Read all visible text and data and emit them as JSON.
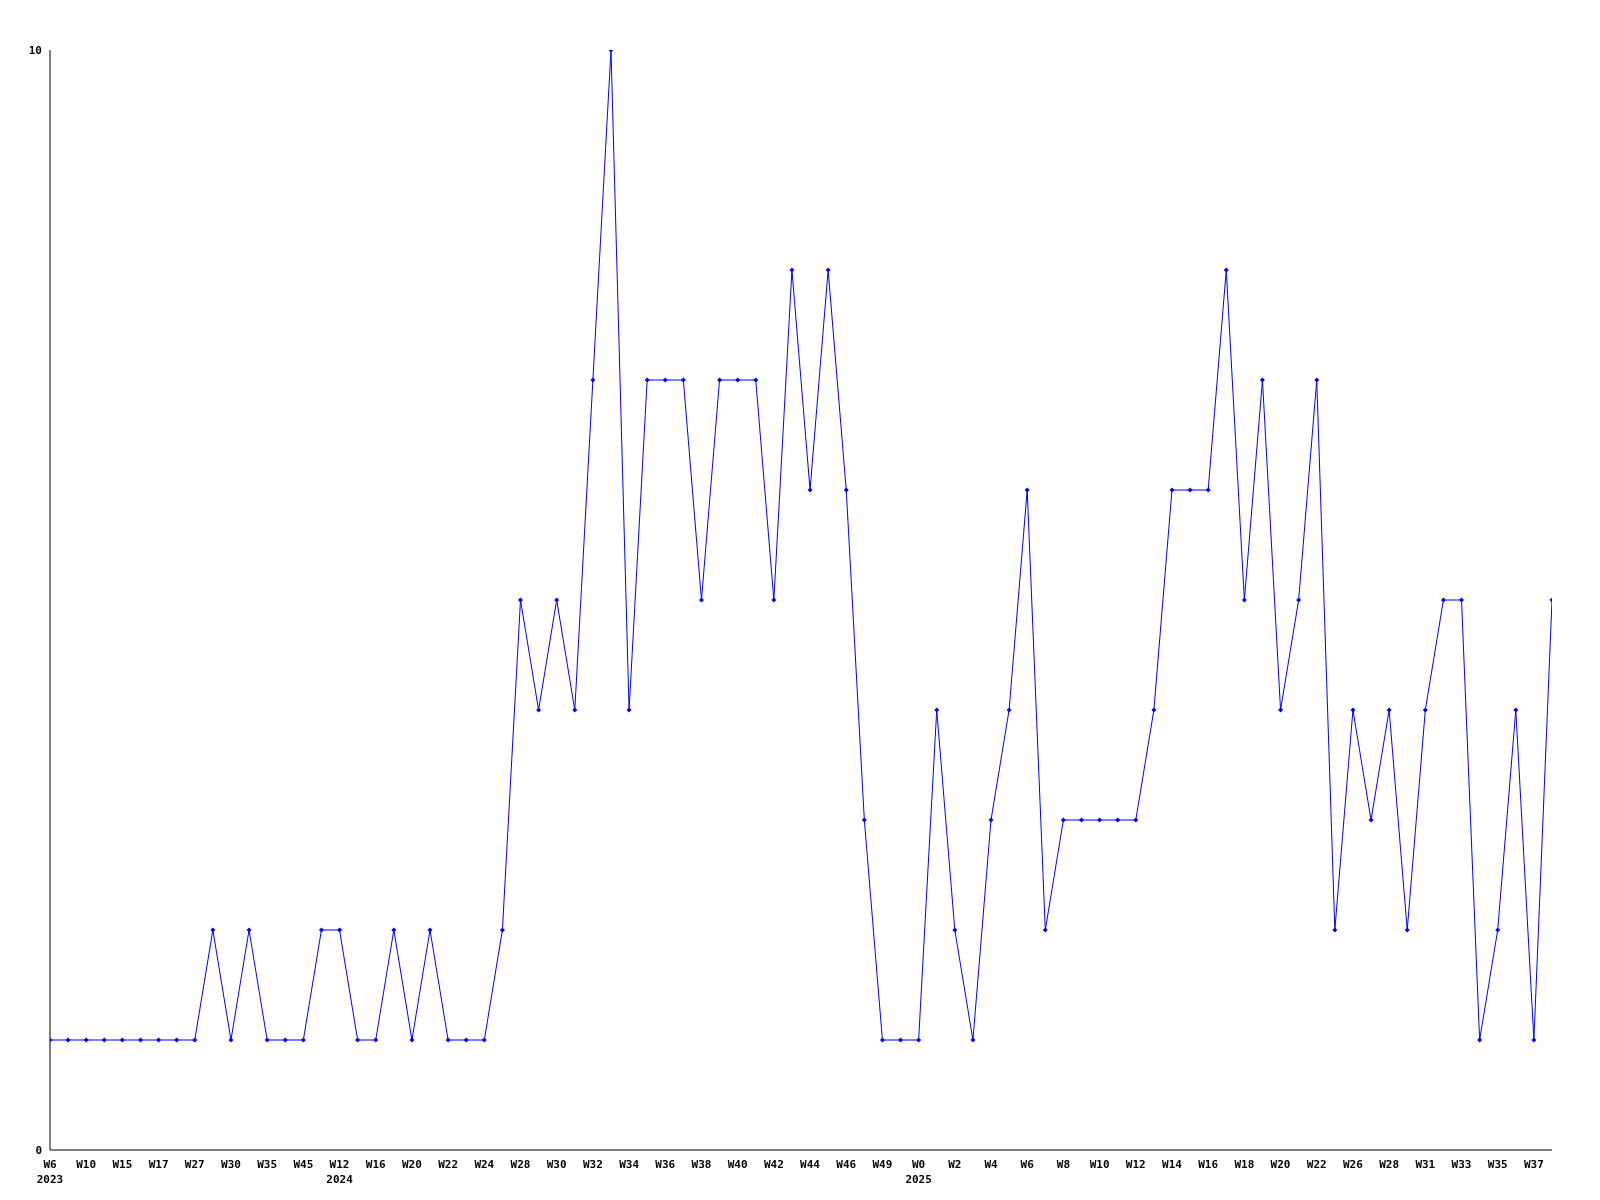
{
  "chart_data": {
    "type": "line",
    "categories": [
      "W6\n2023",
      null,
      "W10",
      null,
      "W15",
      null,
      "W17",
      null,
      "W27",
      null,
      "W30",
      null,
      "W35",
      null,
      "W45",
      null,
      "W12\n2024",
      null,
      "W16",
      null,
      "W20",
      null,
      "W22",
      null,
      "W24",
      null,
      "W28",
      null,
      "W30",
      null,
      "W32",
      null,
      "W34",
      null,
      "W36",
      null,
      "W38",
      null,
      "W40",
      null,
      "W42",
      null,
      "W44",
      null,
      "W46",
      null,
      "W49",
      null,
      "W0\n2025",
      null,
      "W2",
      null,
      "W4",
      null,
      "W6",
      null,
      "W8",
      null,
      "W10",
      null,
      "W12",
      null,
      "W14",
      null,
      "W16",
      null,
      "W18",
      null,
      "W20",
      null,
      "W22",
      null,
      "W26",
      null,
      "W28",
      null,
      "W31",
      null,
      "W33",
      null,
      "W35",
      null,
      "W37",
      null
    ],
    "series": [
      {
        "color": "#0000ff",
        "values": [
          1,
          1,
          1,
          1,
          1,
          1,
          1,
          1,
          1,
          2,
          1,
          2,
          1,
          1,
          1,
          2,
          2,
          1,
          1,
          2,
          1,
          2,
          1,
          1,
          1,
          2,
          5,
          4,
          5,
          4,
          7,
          10,
          4,
          7,
          7,
          7,
          5,
          7,
          7,
          7,
          5,
          8,
          6,
          8,
          6,
          3,
          1,
          1,
          1,
          4,
          2,
          1,
          3,
          4,
          6,
          2,
          3,
          3,
          3,
          3,
          3,
          4,
          6,
          6,
          6,
          8,
          5,
          7,
          4,
          5,
          7,
          2,
          4,
          3,
          4,
          2,
          4,
          5,
          5,
          1,
          2,
          4,
          1,
          5
        ]
      }
    ],
    "ylim": [
      0,
      10
    ],
    "yticks": [
      0,
      10
    ],
    "marker": "diamond",
    "line_style": "solid"
  }
}
